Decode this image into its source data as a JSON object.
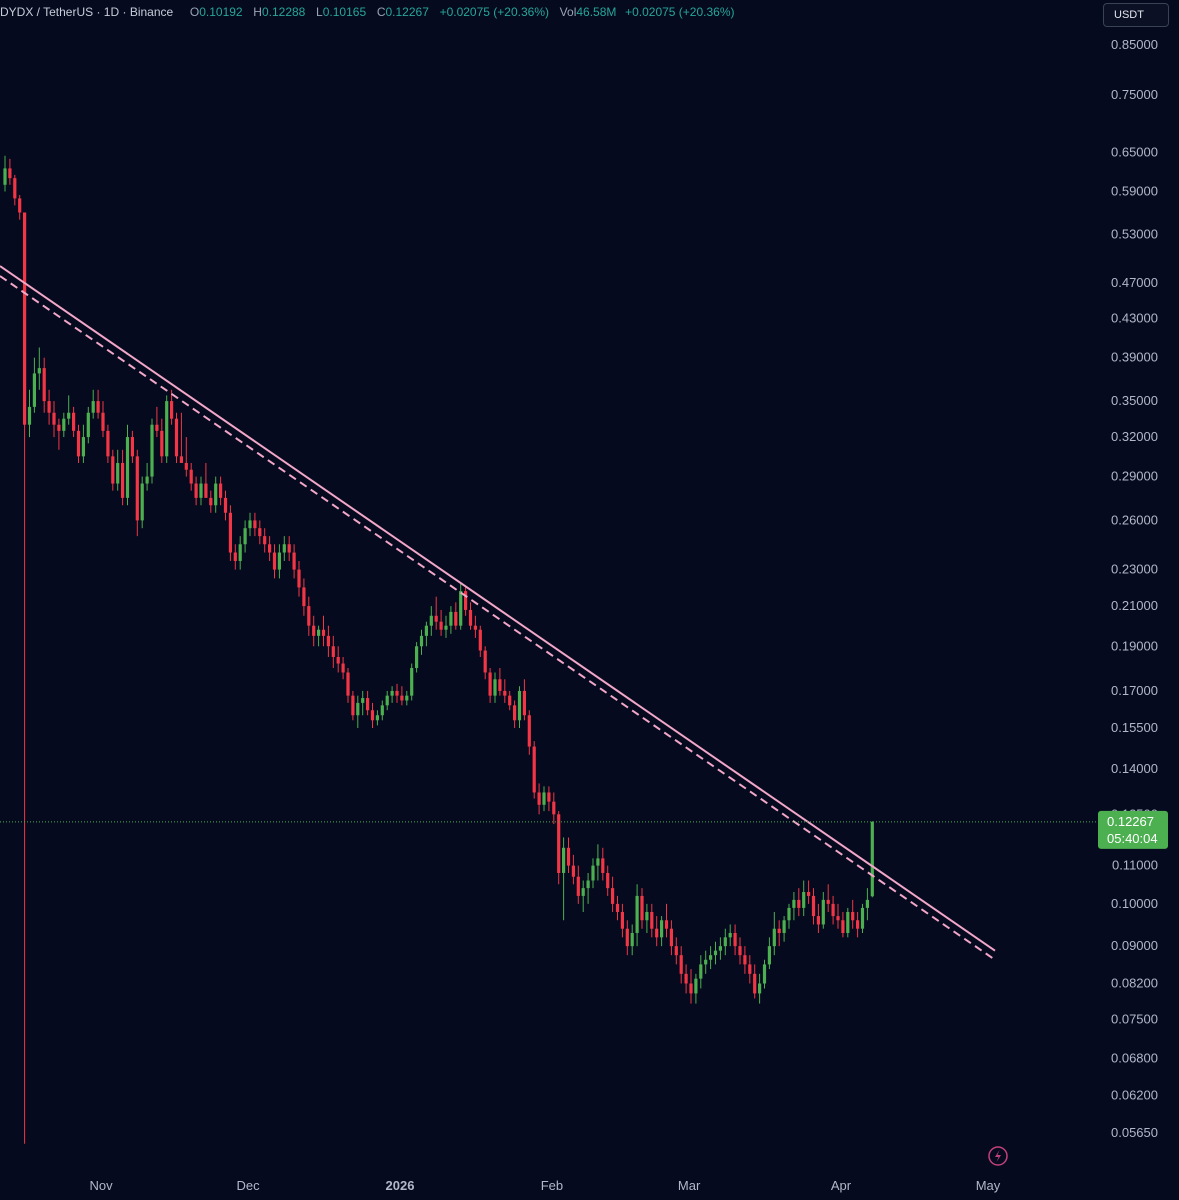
{
  "header": {
    "symbol": "DYDX / TetherUS · 1D · Binance",
    "open_label": "O",
    "open": "0.10192",
    "high_label": "H",
    "high": "0.12288",
    "low_label": "L",
    "low": "0.10165",
    "close_label": "C",
    "close": "0.12267",
    "change": "+0.02075 (+20.36%)",
    "vol_label": "Vol",
    "vol": "46.58M",
    "vol_change": "+0.02075 (+20.36%)"
  },
  "currency_button": "USDT",
  "price_tag": {
    "price": "0.12267",
    "countdown": "05:40:04"
  },
  "colors": {
    "background": "#050a1e",
    "up": "#26a69a",
    "up_candle": "#4caf50",
    "down": "#f23645",
    "trendline": "#f2a6c8",
    "price_tag": "#4caf50"
  },
  "chart_data": {
    "type": "candlestick",
    "scale": "log",
    "y_ticks": [
      "0.85000",
      "0.75000",
      "0.65000",
      "0.59000",
      "0.53000",
      "0.47000",
      "0.43000",
      "0.39000",
      "0.35000",
      "0.32000",
      "0.29000",
      "0.26000",
      "0.23000",
      "0.21000",
      "0.19000",
      "0.17000",
      "0.15500",
      "0.14000",
      "0.12500",
      "0.11000",
      "0.10000",
      "0.09000",
      "0.08200",
      "0.07500",
      "0.06800",
      "0.06200",
      "0.05650"
    ],
    "x_ticks": [
      "Nov",
      "Dec",
      "2026",
      "Feb",
      "Mar",
      "Apr",
      "May"
    ],
    "trendlines": [
      {
        "style": "solid",
        "from": {
          "date": "2025-10-13",
          "price": 0.49
        },
        "to": {
          "date": "2026-05-01",
          "price": 0.089
        }
      },
      {
        "style": "dashed",
        "from": {
          "date": "2025-10-13",
          "price": 0.478
        },
        "to": {
          "date": "2026-05-01",
          "price": 0.087
        }
      }
    ],
    "candles": [
      [
        "2025-10-13",
        0.6,
        0.645,
        0.59,
        0.625
      ],
      [
        "2025-10-14",
        0.625,
        0.64,
        0.6,
        0.61
      ],
      [
        "2025-10-15",
        0.61,
        0.615,
        0.57,
        0.58
      ],
      [
        "2025-10-16",
        0.58,
        0.585,
        0.55,
        0.56
      ],
      [
        "2025-10-17",
        0.56,
        0.56,
        0.055,
        0.33
      ],
      [
        "2025-10-18",
        0.33,
        0.36,
        0.32,
        0.345
      ],
      [
        "2025-10-19",
        0.345,
        0.39,
        0.34,
        0.375
      ],
      [
        "2025-10-20",
        0.375,
        0.4,
        0.36,
        0.38
      ],
      [
        "2025-10-21",
        0.38,
        0.39,
        0.34,
        0.35
      ],
      [
        "2025-10-22",
        0.35,
        0.36,
        0.33,
        0.34
      ],
      [
        "2025-10-23",
        0.34,
        0.35,
        0.32,
        0.33
      ],
      [
        "2025-10-24",
        0.33,
        0.335,
        0.31,
        0.325
      ],
      [
        "2025-10-25",
        0.325,
        0.34,
        0.32,
        0.335
      ],
      [
        "2025-10-26",
        0.335,
        0.355,
        0.33,
        0.34
      ],
      [
        "2025-10-27",
        0.34,
        0.345,
        0.32,
        0.325
      ],
      [
        "2025-10-28",
        0.325,
        0.33,
        0.3,
        0.305
      ],
      [
        "2025-10-29",
        0.305,
        0.33,
        0.3,
        0.32
      ],
      [
        "2025-10-30",
        0.32,
        0.345,
        0.315,
        0.34
      ],
      [
        "2025-10-31",
        0.34,
        0.36,
        0.335,
        0.35
      ],
      [
        "2025-11-01",
        0.35,
        0.36,
        0.335,
        0.34
      ],
      [
        "2025-11-02",
        0.34,
        0.35,
        0.32,
        0.325
      ],
      [
        "2025-11-03",
        0.325,
        0.33,
        0.3,
        0.305
      ],
      [
        "2025-11-04",
        0.305,
        0.31,
        0.28,
        0.285
      ],
      [
        "2025-11-05",
        0.285,
        0.31,
        0.28,
        0.3
      ],
      [
        "2025-11-06",
        0.3,
        0.31,
        0.27,
        0.275
      ],
      [
        "2025-11-07",
        0.275,
        0.33,
        0.27,
        0.32
      ],
      [
        "2025-11-08",
        0.32,
        0.325,
        0.3,
        0.305
      ],
      [
        "2025-11-09",
        0.305,
        0.31,
        0.25,
        0.26
      ],
      [
        "2025-11-10",
        0.26,
        0.29,
        0.255,
        0.285
      ],
      [
        "2025-11-11",
        0.285,
        0.3,
        0.28,
        0.29
      ],
      [
        "2025-11-12",
        0.29,
        0.335,
        0.285,
        0.33
      ],
      [
        "2025-11-13",
        0.33,
        0.345,
        0.32,
        0.325
      ],
      [
        "2025-11-14",
        0.325,
        0.335,
        0.3,
        0.305
      ],
      [
        "2025-11-15",
        0.305,
        0.355,
        0.3,
        0.35
      ],
      [
        "2025-11-16",
        0.35,
        0.36,
        0.33,
        0.335
      ],
      [
        "2025-11-17",
        0.335,
        0.34,
        0.3,
        0.305
      ],
      [
        "2025-11-18",
        0.305,
        0.34,
        0.3,
        0.3
      ],
      [
        "2025-11-19",
        0.3,
        0.32,
        0.29,
        0.295
      ],
      [
        "2025-11-20",
        0.295,
        0.3,
        0.28,
        0.285
      ],
      [
        "2025-11-21",
        0.285,
        0.29,
        0.27,
        0.275
      ],
      [
        "2025-11-22",
        0.275,
        0.29,
        0.27,
        0.285
      ],
      [
        "2025-11-23",
        0.285,
        0.3,
        0.28,
        0.275
      ],
      [
        "2025-11-24",
        0.275,
        0.28,
        0.265,
        0.27
      ],
      [
        "2025-11-25",
        0.27,
        0.29,
        0.265,
        0.285
      ],
      [
        "2025-11-26",
        0.285,
        0.29,
        0.27,
        0.275
      ],
      [
        "2025-11-27",
        0.275,
        0.28,
        0.26,
        0.265
      ],
      [
        "2025-11-28",
        0.265,
        0.27,
        0.235,
        0.24
      ],
      [
        "2025-11-29",
        0.24,
        0.245,
        0.23,
        0.235
      ],
      [
        "2025-11-30",
        0.235,
        0.25,
        0.23,
        0.245
      ],
      [
        "2025-12-01",
        0.245,
        0.26,
        0.24,
        0.255
      ],
      [
        "2025-12-02",
        0.255,
        0.265,
        0.25,
        0.26
      ],
      [
        "2025-12-03",
        0.26,
        0.265,
        0.25,
        0.255
      ],
      [
        "2025-12-04",
        0.255,
        0.26,
        0.245,
        0.25
      ],
      [
        "2025-12-05",
        0.25,
        0.255,
        0.24,
        0.245
      ],
      [
        "2025-12-06",
        0.245,
        0.25,
        0.235,
        0.24
      ],
      [
        "2025-12-07",
        0.24,
        0.245,
        0.225,
        0.23
      ],
      [
        "2025-12-08",
        0.23,
        0.245,
        0.225,
        0.24
      ],
      [
        "2025-12-09",
        0.24,
        0.25,
        0.235,
        0.245
      ],
      [
        "2025-12-10",
        0.245,
        0.25,
        0.235,
        0.24
      ],
      [
        "2025-12-11",
        0.24,
        0.245,
        0.225,
        0.23
      ],
      [
        "2025-12-12",
        0.23,
        0.235,
        0.215,
        0.22
      ],
      [
        "2025-12-13",
        0.22,
        0.225,
        0.205,
        0.21
      ],
      [
        "2025-12-14",
        0.21,
        0.215,
        0.195,
        0.2
      ],
      [
        "2025-12-15",
        0.2,
        0.205,
        0.19,
        0.195
      ],
      [
        "2025-12-16",
        0.195,
        0.2,
        0.19,
        0.198
      ],
      [
        "2025-12-17",
        0.198,
        0.205,
        0.19,
        0.195
      ],
      [
        "2025-12-18",
        0.195,
        0.2,
        0.185,
        0.19
      ],
      [
        "2025-12-19",
        0.19,
        0.195,
        0.18,
        0.185
      ],
      [
        "2025-12-20",
        0.185,
        0.19,
        0.178,
        0.182
      ],
      [
        "2025-12-21",
        0.182,
        0.185,
        0.175,
        0.178
      ],
      [
        "2025-12-22",
        0.178,
        0.18,
        0.165,
        0.168
      ],
      [
        "2025-12-23",
        0.168,
        0.17,
        0.158,
        0.16
      ],
      [
        "2025-12-24",
        0.16,
        0.168,
        0.155,
        0.165
      ],
      [
        "2025-12-25",
        0.165,
        0.17,
        0.16,
        0.167
      ],
      [
        "2025-12-26",
        0.167,
        0.17,
        0.16,
        0.162
      ],
      [
        "2025-12-27",
        0.162,
        0.165,
        0.155,
        0.158
      ],
      [
        "2025-12-28",
        0.158,
        0.162,
        0.156,
        0.16
      ],
      [
        "2025-12-29",
        0.16,
        0.166,
        0.158,
        0.164
      ],
      [
        "2025-12-30",
        0.164,
        0.17,
        0.162,
        0.168
      ],
      [
        "2025-12-31",
        0.168,
        0.172,
        0.165,
        0.17
      ],
      [
        "2026-01-01",
        0.17,
        0.173,
        0.165,
        0.168
      ],
      [
        "2026-01-02",
        0.168,
        0.172,
        0.164,
        0.166
      ],
      [
        "2026-01-03",
        0.166,
        0.17,
        0.164,
        0.168
      ],
      [
        "2026-01-04",
        0.168,
        0.182,
        0.166,
        0.18
      ],
      [
        "2026-01-05",
        0.18,
        0.192,
        0.178,
        0.19
      ],
      [
        "2026-01-06",
        0.19,
        0.198,
        0.186,
        0.195
      ],
      [
        "2026-01-07",
        0.195,
        0.202,
        0.19,
        0.2
      ],
      [
        "2026-01-08",
        0.2,
        0.21,
        0.195,
        0.205
      ],
      [
        "2026-01-09",
        0.205,
        0.215,
        0.198,
        0.202
      ],
      [
        "2026-01-10",
        0.202,
        0.208,
        0.195,
        0.198
      ],
      [
        "2026-01-11",
        0.198,
        0.205,
        0.194,
        0.2
      ],
      [
        "2026-01-12",
        0.2,
        0.21,
        0.196,
        0.207
      ],
      [
        "2026-01-13",
        0.207,
        0.212,
        0.198,
        0.2
      ],
      [
        "2026-01-14",
        0.2,
        0.222,
        0.198,
        0.218
      ],
      [
        "2026-01-15",
        0.218,
        0.22,
        0.205,
        0.208
      ],
      [
        "2026-01-16",
        0.208,
        0.212,
        0.198,
        0.2
      ],
      [
        "2026-01-17",
        0.2,
        0.205,
        0.194,
        0.198
      ],
      [
        "2026-01-18",
        0.198,
        0.2,
        0.185,
        0.188
      ],
      [
        "2026-01-19",
        0.188,
        0.19,
        0.175,
        0.178
      ],
      [
        "2026-01-20",
        0.178,
        0.18,
        0.165,
        0.168
      ],
      [
        "2026-01-21",
        0.168,
        0.178,
        0.165,
        0.175
      ],
      [
        "2026-01-22",
        0.175,
        0.18,
        0.168,
        0.17
      ],
      [
        "2026-01-23",
        0.17,
        0.175,
        0.165,
        0.168
      ],
      [
        "2026-01-24",
        0.168,
        0.17,
        0.162,
        0.164
      ],
      [
        "2026-01-25",
        0.164,
        0.166,
        0.155,
        0.158
      ],
      [
        "2026-01-26",
        0.158,
        0.172,
        0.155,
        0.17
      ],
      [
        "2026-01-27",
        0.17,
        0.175,
        0.158,
        0.16
      ],
      [
        "2026-01-28",
        0.16,
        0.162,
        0.145,
        0.148
      ],
      [
        "2026-01-29",
        0.148,
        0.15,
        0.13,
        0.132
      ],
      [
        "2026-01-30",
        0.132,
        0.135,
        0.125,
        0.128
      ],
      [
        "2026-01-31",
        0.128,
        0.134,
        0.126,
        0.132
      ],
      [
        "2026-02-01",
        0.132,
        0.134,
        0.126,
        0.129
      ],
      [
        "2026-02-02",
        0.129,
        0.132,
        0.122,
        0.125
      ],
      [
        "2026-02-03",
        0.125,
        0.126,
        0.105,
        0.108
      ],
      [
        "2026-02-04",
        0.108,
        0.118,
        0.096,
        0.115
      ],
      [
        "2026-02-05",
        0.115,
        0.118,
        0.108,
        0.11
      ],
      [
        "2026-02-06",
        0.11,
        0.113,
        0.105,
        0.107
      ],
      [
        "2026-02-07",
        0.107,
        0.11,
        0.1,
        0.102
      ],
      [
        "2026-02-08",
        0.102,
        0.106,
        0.098,
        0.104
      ],
      [
        "2026-02-09",
        0.104,
        0.108,
        0.1,
        0.106
      ],
      [
        "2026-02-10",
        0.106,
        0.112,
        0.104,
        0.11
      ],
      [
        "2026-02-11",
        0.11,
        0.116,
        0.106,
        0.112
      ],
      [
        "2026-02-12",
        0.112,
        0.115,
        0.106,
        0.108
      ],
      [
        "2026-02-13",
        0.108,
        0.11,
        0.102,
        0.104
      ],
      [
        "2026-02-14",
        0.104,
        0.107,
        0.098,
        0.1
      ],
      [
        "2026-02-15",
        0.1,
        0.102,
        0.096,
        0.098
      ],
      [
        "2026-02-16",
        0.098,
        0.1,
        0.092,
        0.094
      ],
      [
        "2026-02-17",
        0.094,
        0.096,
        0.088,
        0.09
      ],
      [
        "2026-02-18",
        0.09,
        0.095,
        0.088,
        0.093
      ],
      [
        "2026-02-19",
        0.093,
        0.105,
        0.09,
        0.102
      ],
      [
        "2026-02-20",
        0.102,
        0.104,
        0.094,
        0.096
      ],
      [
        "2026-02-21",
        0.096,
        0.1,
        0.093,
        0.098
      ],
      [
        "2026-02-22",
        0.098,
        0.1,
        0.092,
        0.094
      ],
      [
        "2026-02-23",
        0.094,
        0.097,
        0.09,
        0.092
      ],
      [
        "2026-02-24",
        0.092,
        0.097,
        0.09,
        0.096
      ],
      [
        "2026-02-25",
        0.096,
        0.1,
        0.092,
        0.094
      ],
      [
        "2026-02-26",
        0.094,
        0.096,
        0.088,
        0.09
      ],
      [
        "2026-02-27",
        0.09,
        0.092,
        0.086,
        0.088
      ],
      [
        "2026-02-28",
        0.088,
        0.09,
        0.082,
        0.084
      ],
      [
        "2026-03-01",
        0.084,
        0.086,
        0.08,
        0.082
      ],
      [
        "2026-03-02",
        0.082,
        0.085,
        0.078,
        0.08
      ],
      [
        "2026-03-03",
        0.08,
        0.084,
        0.078,
        0.083
      ],
      [
        "2026-03-04",
        0.083,
        0.088,
        0.081,
        0.086
      ],
      [
        "2026-03-05",
        0.086,
        0.089,
        0.084,
        0.087
      ],
      [
        "2026-03-06",
        0.087,
        0.09,
        0.085,
        0.088
      ],
      [
        "2026-03-07",
        0.088,
        0.091,
        0.086,
        0.089
      ],
      [
        "2026-03-08",
        0.089,
        0.092,
        0.087,
        0.09
      ],
      [
        "2026-03-09",
        0.09,
        0.094,
        0.088,
        0.092
      ],
      [
        "2026-03-10",
        0.092,
        0.095,
        0.09,
        0.093
      ],
      [
        "2026-03-11",
        0.093,
        0.095,
        0.088,
        0.09
      ],
      [
        "2026-03-12",
        0.09,
        0.092,
        0.086,
        0.088
      ],
      [
        "2026-03-13",
        0.088,
        0.09,
        0.084,
        0.086
      ],
      [
        "2026-03-14",
        0.086,
        0.088,
        0.082,
        0.084
      ],
      [
        "2026-03-15",
        0.084,
        0.086,
        0.079,
        0.08
      ],
      [
        "2026-03-16",
        0.08,
        0.084,
        0.078,
        0.082
      ],
      [
        "2026-03-17",
        0.082,
        0.087,
        0.081,
        0.086
      ],
      [
        "2026-03-18",
        0.086,
        0.092,
        0.085,
        0.09
      ],
      [
        "2026-03-19",
        0.09,
        0.098,
        0.088,
        0.094
      ],
      [
        "2026-03-20",
        0.094,
        0.096,
        0.09,
        0.093
      ],
      [
        "2026-03-21",
        0.093,
        0.097,
        0.091,
        0.096
      ],
      [
        "2026-03-22",
        0.096,
        0.1,
        0.094,
        0.099
      ],
      [
        "2026-03-23",
        0.099,
        0.103,
        0.096,
        0.101
      ],
      [
        "2026-03-24",
        0.101,
        0.104,
        0.097,
        0.099
      ],
      [
        "2026-03-25",
        0.099,
        0.106,
        0.097,
        0.103
      ],
      [
        "2026-03-26",
        0.103,
        0.106,
        0.1,
        0.102
      ],
      [
        "2026-03-27",
        0.102,
        0.104,
        0.095,
        0.097
      ],
      [
        "2026-03-28",
        0.097,
        0.1,
        0.093,
        0.095
      ],
      [
        "2026-03-29",
        0.095,
        0.103,
        0.094,
        0.101
      ],
      [
        "2026-03-30",
        0.101,
        0.105,
        0.098,
        0.1
      ],
      [
        "2026-03-31",
        0.1,
        0.102,
        0.095,
        0.097
      ],
      [
        "2026-04-01",
        0.097,
        0.1,
        0.094,
        0.096
      ],
      [
        "2026-04-02",
        0.096,
        0.098,
        0.092,
        0.093
      ],
      [
        "2026-04-03",
        0.093,
        0.099,
        0.092,
        0.098
      ],
      [
        "2026-04-04",
        0.098,
        0.101,
        0.094,
        0.096
      ],
      [
        "2026-04-05",
        0.096,
        0.098,
        0.092,
        0.094
      ],
      [
        "2026-04-06",
        0.094,
        0.1,
        0.093,
        0.099
      ],
      [
        "2026-04-07",
        0.099,
        0.104,
        0.096,
        0.101
      ],
      [
        "2026-04-08",
        0.10192,
        0.12288,
        0.10165,
        0.12267
      ]
    ]
  }
}
